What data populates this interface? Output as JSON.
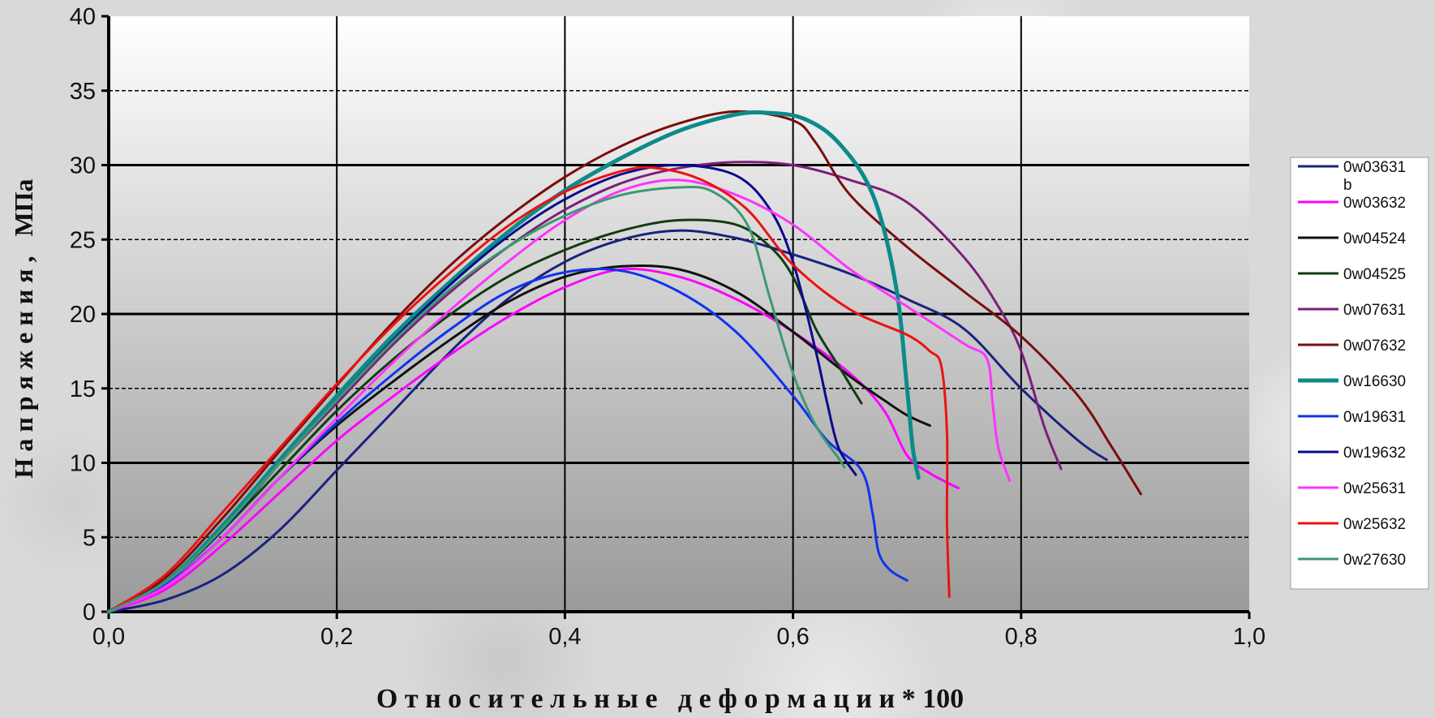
{
  "chart_data": {
    "type": "line",
    "title": "",
    "xlabel": "О т н о с и т е л ь н ы е   д е ф о р м а ц и и * 100",
    "ylabel": "Н а п р я ж е н и я ,   МПа",
    "xlim": [
      0,
      1.0
    ],
    "ylim": [
      0,
      40
    ],
    "x_ticks": [
      "0,0",
      "0,2",
      "0,4",
      "0,6",
      "0,8",
      "1,0"
    ],
    "y_ticks": [
      "0",
      "5",
      "10",
      "15",
      "20",
      "25",
      "30",
      "35",
      "40"
    ],
    "grid": true,
    "legend_position": "right",
    "series": [
      {
        "name": "0w03631 b",
        "color": "#1a237e",
        "width": 3,
        "points": [
          [
            0,
            0
          ],
          [
            0.05,
            0.8
          ],
          [
            0.1,
            2.5
          ],
          [
            0.15,
            5.5
          ],
          [
            0.2,
            9.5
          ],
          [
            0.25,
            13.5
          ],
          [
            0.3,
            17.5
          ],
          [
            0.35,
            21
          ],
          [
            0.4,
            23.5
          ],
          [
            0.45,
            25
          ],
          [
            0.5,
            25.6
          ],
          [
            0.55,
            25.1
          ],
          [
            0.6,
            24
          ],
          [
            0.65,
            22.7
          ],
          [
            0.7,
            21
          ],
          [
            0.75,
            19
          ],
          [
            0.8,
            15
          ],
          [
            0.85,
            11.5
          ],
          [
            0.875,
            10.2
          ]
        ]
      },
      {
        "name": "0w03632",
        "color": "#ff00ff",
        "width": 3,
        "points": [
          [
            0,
            0
          ],
          [
            0.05,
            1.5
          ],
          [
            0.1,
            4.5
          ],
          [
            0.15,
            8
          ],
          [
            0.2,
            11.5
          ],
          [
            0.25,
            14.5
          ],
          [
            0.3,
            17.3
          ],
          [
            0.35,
            19.8
          ],
          [
            0.4,
            21.8
          ],
          [
            0.45,
            23
          ],
          [
            0.5,
            22.5
          ],
          [
            0.55,
            21
          ],
          [
            0.6,
            18.8
          ],
          [
            0.65,
            16
          ],
          [
            0.68,
            13.5
          ],
          [
            0.7,
            10.5
          ],
          [
            0.72,
            9.3
          ],
          [
            0.745,
            8.3
          ]
        ]
      },
      {
        "name": "0w04524",
        "color": "#111111",
        "width": 3,
        "points": [
          [
            0,
            0
          ],
          [
            0.05,
            1.8
          ],
          [
            0.1,
            5
          ],
          [
            0.15,
            9
          ],
          [
            0.2,
            12.5
          ],
          [
            0.25,
            15.5
          ],
          [
            0.3,
            18.3
          ],
          [
            0.35,
            20.8
          ],
          [
            0.4,
            22.5
          ],
          [
            0.45,
            23.2
          ],
          [
            0.5,
            23
          ],
          [
            0.55,
            21.5
          ],
          [
            0.6,
            18.8
          ],
          [
            0.65,
            15.8
          ],
          [
            0.68,
            14.2
          ],
          [
            0.7,
            13.2
          ],
          [
            0.72,
            12.5
          ]
        ]
      },
      {
        "name": "0w04525",
        "color": "#123d12",
        "width": 3,
        "points": [
          [
            0,
            0
          ],
          [
            0.05,
            2
          ],
          [
            0.1,
            5.5
          ],
          [
            0.15,
            9.5
          ],
          [
            0.2,
            13.5
          ],
          [
            0.25,
            17
          ],
          [
            0.3,
            20
          ],
          [
            0.35,
            22.5
          ],
          [
            0.4,
            24.3
          ],
          [
            0.45,
            25.6
          ],
          [
            0.5,
            26.3
          ],
          [
            0.55,
            26
          ],
          [
            0.58,
            24.5
          ],
          [
            0.6,
            22.5
          ],
          [
            0.62,
            19
          ],
          [
            0.64,
            16.5
          ],
          [
            0.66,
            14
          ]
        ]
      },
      {
        "name": "0w07631",
        "color": "#7b1f7b",
        "width": 3,
        "points": [
          [
            0,
            0
          ],
          [
            0.05,
            2
          ],
          [
            0.1,
            5.5
          ],
          [
            0.15,
            10
          ],
          [
            0.2,
            14
          ],
          [
            0.25,
            18
          ],
          [
            0.3,
            21.5
          ],
          [
            0.35,
            24.5
          ],
          [
            0.4,
            27
          ],
          [
            0.45,
            28.8
          ],
          [
            0.5,
            29.8
          ],
          [
            0.55,
            30.2
          ],
          [
            0.6,
            30
          ],
          [
            0.65,
            29
          ],
          [
            0.7,
            27.5
          ],
          [
            0.75,
            23.8
          ],
          [
            0.78,
            20.5
          ],
          [
            0.8,
            17.5
          ],
          [
            0.82,
            12.5
          ],
          [
            0.835,
            9.6
          ]
        ]
      },
      {
        "name": "0w07632",
        "color": "#7a0e0e",
        "width": 3,
        "points": [
          [
            0,
            0
          ],
          [
            0.05,
            2.3
          ],
          [
            0.1,
            6.3
          ],
          [
            0.15,
            10.8
          ],
          [
            0.2,
            15.2
          ],
          [
            0.25,
            19.5
          ],
          [
            0.3,
            23.3
          ],
          [
            0.35,
            26.5
          ],
          [
            0.4,
            29.2
          ],
          [
            0.45,
            31.3
          ],
          [
            0.5,
            32.8
          ],
          [
            0.55,
            33.6
          ],
          [
            0.6,
            33
          ],
          [
            0.62,
            31.5
          ],
          [
            0.65,
            28
          ],
          [
            0.7,
            24.5
          ],
          [
            0.75,
            21.5
          ],
          [
            0.8,
            18.5
          ],
          [
            0.85,
            14.5
          ],
          [
            0.88,
            11
          ],
          [
            0.905,
            7.9
          ]
        ]
      },
      {
        "name": "0w16630",
        "color": "#0e8a8a",
        "width": 5,
        "points": [
          [
            0,
            0
          ],
          [
            0.05,
            2
          ],
          [
            0.1,
            5.8
          ],
          [
            0.15,
            10.2
          ],
          [
            0.2,
            14.5
          ],
          [
            0.25,
            18.6
          ],
          [
            0.3,
            22.2
          ],
          [
            0.35,
            25.5
          ],
          [
            0.4,
            28.3
          ],
          [
            0.45,
            30.5
          ],
          [
            0.5,
            32.3
          ],
          [
            0.55,
            33.4
          ],
          [
            0.58,
            33.5
          ],
          [
            0.61,
            33.1
          ],
          [
            0.64,
            31.5
          ],
          [
            0.67,
            28
          ],
          [
            0.69,
            22
          ],
          [
            0.7,
            15
          ],
          [
            0.705,
            11
          ],
          [
            0.71,
            9
          ]
        ]
      },
      {
        "name": "0w19631",
        "color": "#1133ee",
        "width": 3,
        "points": [
          [
            0,
            0
          ],
          [
            0.05,
            1.8
          ],
          [
            0.1,
            5
          ],
          [
            0.15,
            9
          ],
          [
            0.2,
            12.7
          ],
          [
            0.25,
            16
          ],
          [
            0.3,
            19
          ],
          [
            0.35,
            21.5
          ],
          [
            0.4,
            22.8
          ],
          [
            0.45,
            22.9
          ],
          [
            0.5,
            21.5
          ],
          [
            0.55,
            18.8
          ],
          [
            0.6,
            14.5
          ],
          [
            0.63,
            11.5
          ],
          [
            0.66,
            9.5
          ],
          [
            0.67,
            6.5
          ],
          [
            0.675,
            4
          ],
          [
            0.685,
            2.8
          ],
          [
            0.7,
            2.1
          ]
        ]
      },
      {
        "name": "0w19632",
        "color": "#0b0b8c",
        "width": 3,
        "points": [
          [
            0,
            0
          ],
          [
            0.05,
            2
          ],
          [
            0.1,
            5.5
          ],
          [
            0.15,
            10
          ],
          [
            0.2,
            14.2
          ],
          [
            0.25,
            18.3
          ],
          [
            0.3,
            22
          ],
          [
            0.35,
            25.2
          ],
          [
            0.4,
            27.7
          ],
          [
            0.45,
            29.4
          ],
          [
            0.5,
            30
          ],
          [
            0.55,
            29.3
          ],
          [
            0.58,
            27
          ],
          [
            0.6,
            23.5
          ],
          [
            0.62,
            17.5
          ],
          [
            0.63,
            14
          ],
          [
            0.64,
            11
          ],
          [
            0.655,
            9.2
          ]
        ]
      },
      {
        "name": "0w25631",
        "color": "#ff33ff",
        "width": 3,
        "points": [
          [
            0,
            0
          ],
          [
            0.05,
            1.7
          ],
          [
            0.1,
            5
          ],
          [
            0.15,
            9
          ],
          [
            0.2,
            13
          ],
          [
            0.25,
            16.8
          ],
          [
            0.3,
            20.3
          ],
          [
            0.35,
            23.5
          ],
          [
            0.4,
            26.3
          ],
          [
            0.45,
            28.3
          ],
          [
            0.5,
            29
          ],
          [
            0.55,
            28
          ],
          [
            0.6,
            26
          ],
          [
            0.65,
            23
          ],
          [
            0.7,
            20.5
          ],
          [
            0.75,
            18
          ],
          [
            0.77,
            17
          ],
          [
            0.775,
            14
          ],
          [
            0.78,
            11
          ],
          [
            0.79,
            8.8
          ]
        ]
      },
      {
        "name": "0w25632",
        "color": "#ee1111",
        "width": 3,
        "points": [
          [
            0,
            0
          ],
          [
            0.05,
            2.5
          ],
          [
            0.1,
            6.7
          ],
          [
            0.15,
            11
          ],
          [
            0.2,
            15.3
          ],
          [
            0.25,
            19.3
          ],
          [
            0.3,
            22.8
          ],
          [
            0.35,
            25.9
          ],
          [
            0.4,
            28.2
          ],
          [
            0.45,
            29.6
          ],
          [
            0.48,
            29.8
          ],
          [
            0.52,
            29
          ],
          [
            0.56,
            27
          ],
          [
            0.6,
            23.3
          ],
          [
            0.65,
            20.3
          ],
          [
            0.7,
            18.6
          ],
          [
            0.72,
            17.5
          ],
          [
            0.73,
            16.5
          ],
          [
            0.735,
            12
          ],
          [
            0.735,
            6
          ],
          [
            0.737,
            1
          ]
        ]
      },
      {
        "name": "0w27630",
        "color": "#3d9970",
        "width": 3,
        "points": [
          [
            0,
            0
          ],
          [
            0.05,
            2
          ],
          [
            0.1,
            5.6
          ],
          [
            0.15,
            10
          ],
          [
            0.2,
            14.2
          ],
          [
            0.25,
            18.2
          ],
          [
            0.3,
            21.7
          ],
          [
            0.35,
            24.5
          ],
          [
            0.4,
            26.6
          ],
          [
            0.45,
            28
          ],
          [
            0.5,
            28.5
          ],
          [
            0.53,
            28.2
          ],
          [
            0.56,
            26
          ],
          [
            0.58,
            21
          ],
          [
            0.6,
            16
          ],
          [
            0.62,
            12.5
          ],
          [
            0.64,
            10.3
          ],
          [
            0.645,
            9.7
          ]
        ]
      }
    ]
  }
}
